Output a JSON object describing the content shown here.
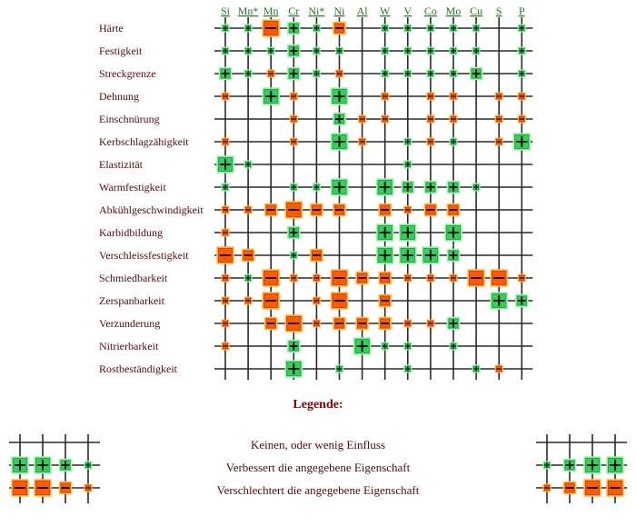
{
  "columns": [
    "Si",
    "Mn*",
    "Mn",
    "Cr",
    "Ni*",
    "Ni",
    "Al",
    "W",
    "V",
    "Co",
    "Mo",
    "Cu",
    "S",
    "P"
  ],
  "rows": [
    {
      "label": "Härte",
      "cells": [
        "+1",
        "+1",
        "-3",
        "+2",
        "+1",
        "-2",
        "",
        "+1",
        "+1",
        "+1",
        "+1",
        "+1",
        "",
        "+1"
      ]
    },
    {
      "label": "Festigkeit",
      "cells": [
        "+1",
        "+1",
        "+1",
        "+2",
        "+1",
        "+1",
        "",
        "+1",
        "+1",
        "+1",
        "+1",
        "+1",
        "",
        "+1"
      ]
    },
    {
      "label": "Streckgrenze",
      "cells": [
        "+2",
        "+1",
        "-1",
        "+2",
        "+1",
        "-1",
        "",
        "+1",
        "+1",
        "+1",
        "+1",
        "+2",
        "",
        "+1"
      ]
    },
    {
      "label": "Dehnung",
      "cells": [
        "-1",
        "",
        "+3",
        "-1",
        "",
        "+3",
        "",
        "-1",
        "",
        "-1",
        "-1",
        "",
        "-1",
        "-1"
      ]
    },
    {
      "label": "Einschnürung",
      "cells": [
        "",
        "",
        "",
        "-1",
        "",
        "+2",
        "-1",
        "-1",
        "",
        "-1",
        "-1",
        "",
        "-1",
        "-1"
      ]
    },
    {
      "label": "Kerbschlagzähigkeit",
      "cells": [
        "-1",
        "",
        "",
        "-1",
        "",
        "+3",
        "-1",
        "",
        "+1",
        "-1",
        "+1",
        "",
        "-1",
        "+3"
      ]
    },
    {
      "label": "Elastizität",
      "cells": [
        "+3",
        "+1",
        "",
        "",
        "",
        "",
        "",
        "",
        "+1",
        "",
        "",
        "",
        "",
        ""
      ]
    },
    {
      "label": "Warmfestigkeit",
      "cells": [
        "+1",
        "",
        "",
        "+1",
        "+1",
        "+3",
        "",
        "+3",
        "+2",
        "+2",
        "+2",
        "+1",
        "",
        ""
      ]
    },
    {
      "label": "Abkühlgeschwindigkeit",
      "cells": [
        "-1",
        "-1",
        "-2",
        "-3",
        "-2",
        "-2",
        "",
        "-2",
        "-1",
        "-2",
        "-2",
        "",
        "",
        ""
      ]
    },
    {
      "label": "Karbidbildung",
      "cells": [
        "-1",
        "",
        "",
        "+2",
        "",
        "",
        "",
        "+3",
        "+3",
        "",
        "+3",
        "",
        "",
        ""
      ]
    },
    {
      "label": "Verschleissfestigkeit",
      "cells": [
        "-3",
        "-2",
        "",
        "+1",
        "-2",
        "",
        "",
        "+3",
        "+3",
        "+3",
        "+2",
        "",
        "",
        ""
      ]
    },
    {
      "label": "Schmiedbarkeit",
      "cells": [
        "-1",
        "+1",
        "-3",
        "-1",
        "-1",
        "-3",
        "-2",
        "-2",
        "-1",
        "-1",
        "-1",
        "-3",
        "-3",
        "-1"
      ]
    },
    {
      "label": "Zerspanbarkeit",
      "cells": [
        "-1",
        "-1",
        "-3",
        "",
        "-1",
        "-3",
        "",
        "-2",
        "",
        "",
        "",
        "",
        "+3",
        "+2"
      ]
    },
    {
      "label": "Verzunderung",
      "cells": [
        "-1",
        "",
        "-2",
        "-3",
        "-1",
        "-2",
        "-2",
        "-2",
        "-1",
        "-1",
        "+2",
        "",
        "",
        ""
      ]
    },
    {
      "label": "Nitrierbarkeit",
      "cells": [
        "-1",
        "",
        "",
        "+2",
        "",
        "",
        "+3",
        "+1",
        "+1",
        "",
        "+1",
        "",
        "",
        ""
      ]
    },
    {
      "label": "Rostbeständigkeit",
      "cells": [
        "",
        "",
        "",
        "+3",
        "",
        "+1",
        "",
        "",
        "+1",
        "",
        "",
        "+1",
        "-1",
        ""
      ]
    }
  ],
  "legend": {
    "title": "Legende:",
    "none": "Keinen, oder wenig Einfluss",
    "improves": "Verbessert die angegebene Eigenschaft",
    "worsens": "Verschlechtert die angegebene Eigenschaft"
  },
  "colors": {
    "improve_fill": "#2fd35a",
    "improve_light": "#a8f0b4",
    "improve_dark": "#0f7a2c",
    "worsen_fill": "#ff5a00",
    "worsen_light": "#ffc040",
    "worsen_dark": "#a82a00",
    "grid": "#2a2a2a",
    "column_label": "#1f7a1f",
    "row_label": "#5a0a0a",
    "legend_title": "#8b0000"
  }
}
